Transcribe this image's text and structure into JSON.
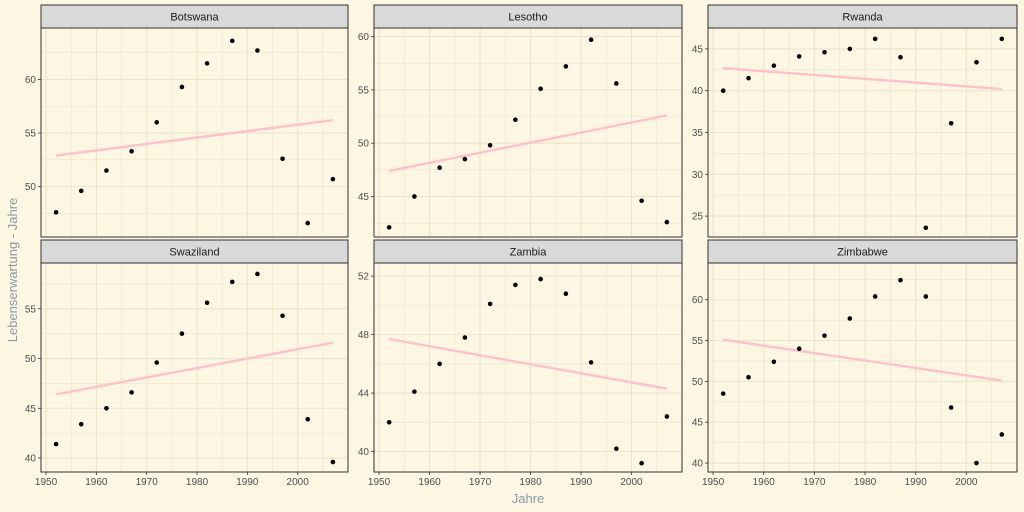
{
  "chart_data": {
    "type": "scatter",
    "xlabel": "Jahre",
    "ylabel": "Lebenserwartung - Jahre",
    "x_ticks": [
      1950,
      1960,
      1970,
      1980,
      1990,
      2000
    ],
    "xlim": [
      1949,
      2010
    ],
    "grid": true,
    "colors": {
      "points": "#000000",
      "trend": "#ffc0cb",
      "panel": "#fdf6e3",
      "strip": "#d9d9d9",
      "grid": "#ece3cb"
    },
    "panels": [
      {
        "title": "Botswana",
        "x": [
          1952,
          1957,
          1962,
          1967,
          1972,
          1977,
          1982,
          1987,
          1992,
          1997,
          2002,
          2007
        ],
        "y": [
          47.6,
          49.6,
          51.5,
          53.3,
          56.0,
          59.3,
          61.5,
          63.6,
          62.7,
          52.6,
          46.6,
          50.7
        ],
        "trend": [
          [
            1952,
            52.9
          ],
          [
            2007,
            56.2
          ]
        ],
        "ylim": [
          45.3,
          64.8
        ],
        "y_ticks": [
          50,
          55,
          60
        ]
      },
      {
        "title": "Lesotho",
        "x": [
          1952,
          1957,
          1962,
          1967,
          1972,
          1977,
          1982,
          1987,
          1992,
          1997,
          2002,
          2007
        ],
        "y": [
          42.1,
          45.0,
          47.7,
          48.5,
          49.8,
          52.2,
          55.1,
          57.2,
          59.7,
          55.6,
          44.6,
          42.6
        ],
        "trend": [
          [
            1952,
            47.4
          ],
          [
            2007,
            52.6
          ]
        ],
        "ylim": [
          41.2,
          60.8
        ],
        "y_ticks": [
          45,
          50,
          55,
          60
        ]
      },
      {
        "title": "Rwanda",
        "x": [
          1952,
          1957,
          1962,
          1967,
          1972,
          1977,
          1982,
          1987,
          1992,
          1997,
          2002,
          2007
        ],
        "y": [
          40.0,
          41.5,
          43.0,
          44.1,
          44.6,
          45.0,
          46.2,
          44.0,
          23.6,
          36.1,
          43.4,
          46.2
        ],
        "trend": [
          [
            1952,
            42.7
          ],
          [
            2007,
            40.2
          ]
        ],
        "ylim": [
          22.5,
          47.5
        ],
        "y_ticks": [
          25,
          30,
          35,
          40,
          45
        ]
      },
      {
        "title": "Swaziland",
        "x": [
          1952,
          1957,
          1962,
          1967,
          1972,
          1977,
          1982,
          1987,
          1992,
          1997,
          2002,
          2007
        ],
        "y": [
          41.4,
          43.4,
          45.0,
          46.6,
          49.6,
          52.5,
          55.6,
          57.7,
          58.5,
          54.3,
          43.9,
          39.6
        ],
        "trend": [
          [
            1952,
            46.4
          ],
          [
            2007,
            51.6
          ]
        ],
        "ylim": [
          38.6,
          59.6
        ],
        "y_ticks": [
          40,
          45,
          50,
          55
        ]
      },
      {
        "title": "Zambia",
        "x": [
          1952,
          1957,
          1962,
          1967,
          1972,
          1977,
          1982,
          1987,
          1992,
          1997,
          2002,
          2007
        ],
        "y": [
          42.0,
          44.1,
          46.0,
          47.8,
          50.1,
          51.4,
          51.8,
          50.8,
          46.1,
          40.2,
          39.2,
          42.4
        ],
        "trend": [
          [
            1952,
            47.7
          ],
          [
            2007,
            44.3
          ]
        ],
        "ylim": [
          38.6,
          52.9
        ],
        "y_ticks": [
          40,
          44,
          48,
          52
        ]
      },
      {
        "title": "Zimbabwe",
        "x": [
          1952,
          1957,
          1962,
          1967,
          1972,
          1977,
          1982,
          1987,
          1992,
          1997,
          2002,
          2007
        ],
        "y": [
          48.5,
          50.5,
          52.4,
          54.0,
          55.6,
          57.7,
          60.4,
          62.4,
          60.4,
          46.8,
          40.0,
          43.5
        ],
        "trend": [
          [
            1952,
            55.1
          ],
          [
            2007,
            50.1
          ]
        ],
        "ylim": [
          38.9,
          64.5
        ],
        "y_ticks": [
          40,
          45,
          50,
          55,
          60
        ]
      }
    ]
  }
}
